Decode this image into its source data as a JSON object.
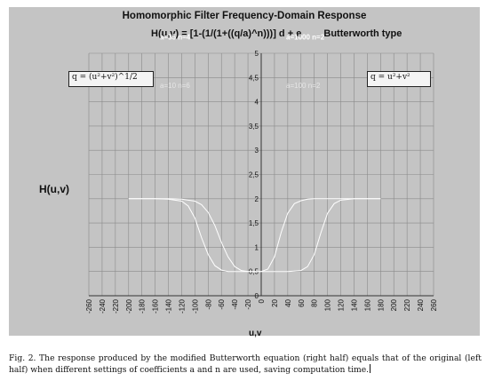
{
  "chart_data": {
    "type": "line",
    "title": "Homomorphic Filter Frequency-Domain Response",
    "formula": {
      "lhs": "H(u,v)",
      "rhs": "= [1-(1/(1+((q/a)^n)))] d + e",
      "type": "Butterworth type"
    },
    "ylabel": "H(u,v)",
    "xlabel": "u,v",
    "ylim": [
      0,
      5
    ],
    "xlim": [
      -260,
      260
    ],
    "y_ticks": [
      "0",
      "0,5",
      "1",
      "1,5",
      "2",
      "2,5",
      "3",
      "3,5",
      "4",
      "4,5",
      "5"
    ],
    "x_ticks": [
      "-260",
      "-240",
      "-220",
      "-200",
      "-180",
      "-160",
      "-140",
      "-120",
      "-100",
      "-80",
      "-60",
      "-40",
      "-20",
      "0",
      "20",
      "40",
      "60",
      "80",
      "100",
      "120",
      "140",
      "160",
      "180",
      "200",
      "220",
      "240",
      "260"
    ],
    "grid": true,
    "annotations": {
      "left_formula": "q = (u²+v²)^1/2",
      "right_formula": "q = u²+v²"
    },
    "legend_left": [
      "a=10   n=6",
      "a=35   n=4",
      "a=110   n=8"
    ],
    "legend_right": [
      "a=100   n=2",
      "a=1000   n=2",
      "a=10000   n=4"
    ],
    "series": [
      {
        "x": [
          -200,
          -180,
          -160,
          -140,
          -120,
          -100,
          -90,
          -80,
          -70,
          -60,
          -50,
          -40,
          -30,
          -20,
          -10,
          0
        ],
        "y": [
          2.0,
          2.0,
          2.0,
          2.0,
          1.99,
          1.95,
          1.88,
          1.72,
          1.45,
          1.1,
          0.8,
          0.6,
          0.52,
          0.5,
          0.5,
          0.5
        ]
      },
      {
        "x": [
          0,
          10,
          20,
          30,
          40,
          50,
          60,
          70,
          80,
          90,
          100,
          120,
          140,
          160,
          180
        ],
        "y": [
          0.5,
          0.55,
          0.8,
          1.3,
          1.7,
          1.9,
          1.96,
          1.99,
          2.0,
          2.0,
          2.0,
          2.0,
          2.0,
          2.0,
          2.0
        ]
      },
      {
        "x": [
          -200,
          -160,
          -140,
          -120,
          -110,
          -100,
          -90,
          -80,
          -70,
          -60,
          -50,
          -40,
          -20,
          0
        ],
        "y": [
          2.0,
          2.0,
          1.99,
          1.95,
          1.85,
          1.6,
          1.2,
          0.85,
          0.62,
          0.53,
          0.5,
          0.5,
          0.5,
          0.5
        ]
      },
      {
        "x": [
          0,
          20,
          40,
          60,
          70,
          80,
          90,
          100,
          110,
          120,
          140,
          160,
          180
        ],
        "y": [
          0.5,
          0.5,
          0.5,
          0.52,
          0.6,
          0.85,
          1.3,
          1.7,
          1.9,
          1.97,
          2.0,
          2.0,
          2.0
        ]
      }
    ],
    "colors": {
      "plot_bg": "#c4c4c4",
      "grid": "#8a8a8a",
      "series": "#ffffff",
      "legend_text": "#e6e6e6",
      "legend_text_bold": "#ffffff"
    }
  },
  "caption": "Fig. 2. The response produced by the modified Butterworth equation (right half) equals that of the original (left half) when different settings of coefficients a and n are used, saving computation time."
}
